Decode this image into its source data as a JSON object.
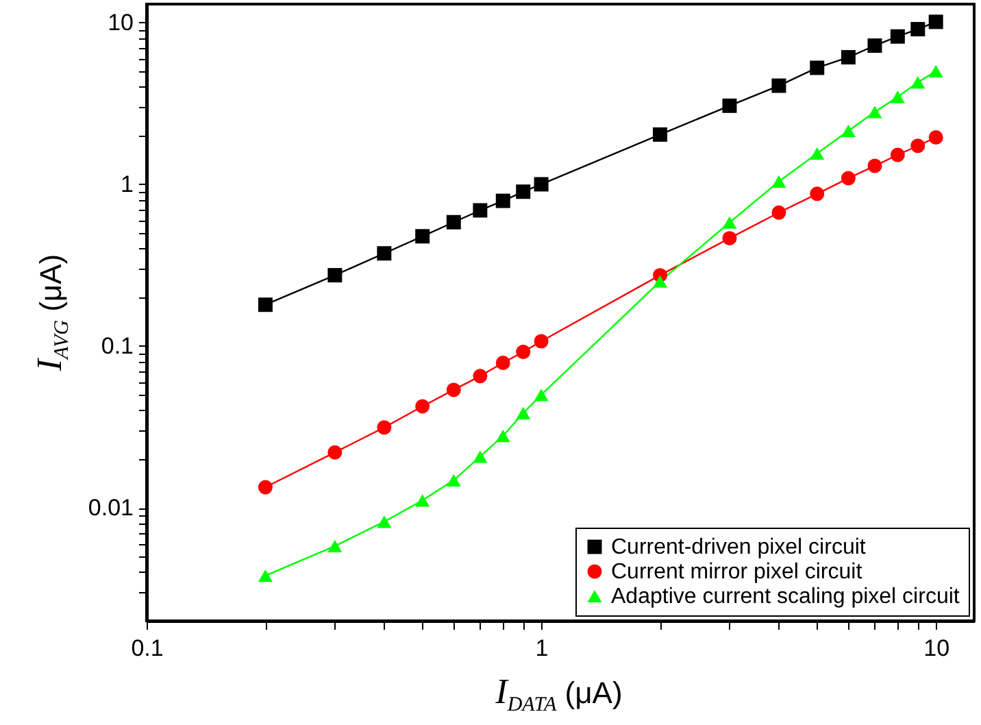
{
  "chart_data": {
    "type": "line",
    "xlabel": "I$_{DATA}$ (μA)",
    "ylabel": "I$_{AVG}$ (μA)",
    "log": "xy",
    "grid": false,
    "legend": "bottom right",
    "line_style": "solid",
    "x": [
      0.2,
      0.3,
      0.4,
      0.5,
      0.6,
      0.7,
      0.8,
      0.9,
      1,
      2,
      3,
      4,
      5,
      6,
      7,
      8,
      9,
      10
    ],
    "xlim": [
      0.1,
      12.5
    ],
    "ylim": [
      0.002,
      13
    ],
    "xticks": [
      0.1,
      {
        "value": 0.2,
        "label": null
      },
      {
        "value": 0.3,
        "label": null
      },
      {
        "value": 0.4,
        "label": null
      },
      {
        "value": 0.5,
        "label": null
      },
      {
        "value": 0.6,
        "label": null
      },
      {
        "value": 0.7,
        "label": null
      },
      {
        "value": 0.8,
        "label": null
      },
      {
        "value": 0.9,
        "label": null
      },
      1,
      {
        "value": 2,
        "label": null
      },
      {
        "value": 3,
        "label": null
      },
      {
        "value": 4,
        "label": null
      },
      {
        "value": 5,
        "label": null
      },
      {
        "value": 6,
        "label": null
      },
      {
        "value": 7,
        "label": null
      },
      {
        "value": 8,
        "label": null
      },
      {
        "value": 9,
        "label": null
      },
      10
    ],
    "yticks": [
      {
        "value": 0.003,
        "label": null
      },
      {
        "value": 0.004,
        "label": null
      },
      {
        "value": 0.005,
        "label": null
      },
      {
        "value": 0.006,
        "label": null
      },
      {
        "value": 0.007,
        "label": null
      },
      {
        "value": 0.008,
        "label": null
      },
      {
        "value": 0.009,
        "label": null
      },
      0.01,
      {
        "value": 0.02,
        "label": null
      },
      {
        "value": 0.03,
        "label": null
      },
      {
        "value": 0.04,
        "label": null
      },
      {
        "value": 0.05,
        "label": null
      },
      {
        "value": 0.06,
        "label": null
      },
      {
        "value": 0.07,
        "label": null
      },
      {
        "value": 0.08,
        "label": null
      },
      {
        "value": 0.09,
        "label": null
      },
      0.1,
      {
        "value": 0.2,
        "label": null
      },
      {
        "value": 0.3,
        "label": null
      },
      {
        "value": 0.4,
        "label": null
      },
      {
        "value": 0.5,
        "label": null
      },
      {
        "value": 0.6,
        "label": null
      },
      {
        "value": 0.7,
        "label": null
      },
      {
        "value": 0.8,
        "label": null
      },
      {
        "value": 0.9,
        "label": null
      },
      1,
      {
        "value": 2,
        "label": null
      },
      {
        "value": 3,
        "label": null
      },
      {
        "value": 4,
        "label": null
      },
      {
        "value": 5,
        "label": null
      },
      {
        "value": 6,
        "label": null
      },
      {
        "value": 7,
        "label": null
      },
      {
        "value": 8,
        "label": null
      },
      {
        "value": 9,
        "label": null
      },
      10
    ],
    "series": [
      {
        "name": "Current-driven pixel circuit",
        "color": "#000000",
        "marker": "square",
        "values": [
          0.18,
          0.274,
          0.374,
          0.477,
          0.583,
          0.69,
          0.79,
          0.9,
          1.0,
          2.03,
          3.06,
          4.07,
          5.25,
          6.1,
          7.2,
          8.2,
          9.1,
          10.1
        ]
      },
      {
        "name": "Current mirror pixel circuit",
        "color": "#ff0000",
        "marker": "circle",
        "values": [
          0.0134,
          0.022,
          0.0314,
          0.0424,
          0.0536,
          0.0652,
          0.0787,
          0.092,
          0.107,
          0.274,
          0.464,
          0.668,
          0.873,
          1.09,
          1.3,
          1.52,
          1.73,
          1.95
        ]
      },
      {
        "name": "Adaptive current scaling pixel circuit",
        "color": "#00ff00",
        "marker": "triangle",
        "values": [
          0.0038,
          0.0058,
          0.0082,
          0.0111,
          0.0148,
          0.0207,
          0.0278,
          0.0385,
          0.0499,
          0.251,
          0.58,
          1.04,
          1.55,
          2.14,
          2.8,
          3.47,
          4.27,
          5.0
        ]
      }
    ]
  }
}
